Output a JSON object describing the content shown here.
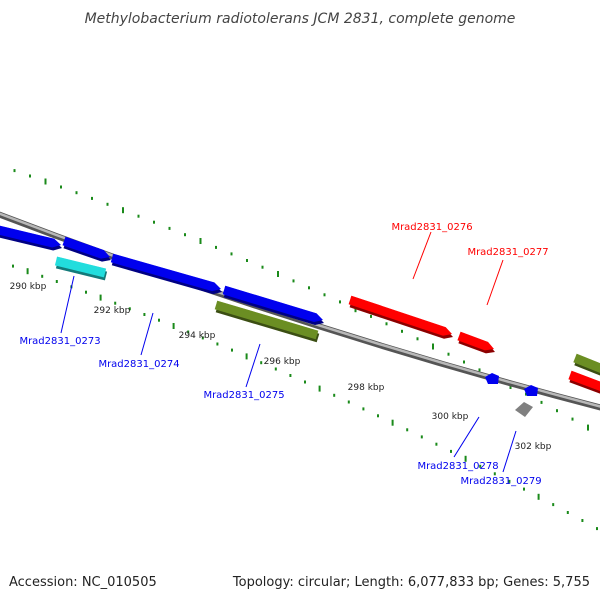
{
  "header": {
    "title": "Methylobacterium radiotolerans JCM 2831, complete genome"
  },
  "footer": {
    "accession": "Accession: NC_010505",
    "summary": "Topology: circular; Length: 6,077,833 bp; Genes: 5,755"
  },
  "colors": {
    "forward_gene": "#ff0000",
    "reverse_gene": "#0000ee",
    "rna_gene": "#22dddd",
    "other_gene": "#6b8e23",
    "pseudo_gene": "#808080",
    "tick": "#1a8a1a",
    "backbone": "#888888"
  },
  "ruler": {
    "labels": [
      "290 kbp",
      "292 kbp",
      "294 kbp",
      "296 kbp",
      "298 kbp",
      "300 kbp",
      "302 kbp"
    ]
  },
  "genes": [
    {
      "label": "Mrad2831_0273",
      "strand": "reverse",
      "color_key": "reverse_gene"
    },
    {
      "label": "Mrad2831_0274",
      "strand": "reverse",
      "color_key": "reverse_gene"
    },
    {
      "label": "Mrad2831_0275",
      "strand": "reverse",
      "color_key": "reverse_gene"
    },
    {
      "label": "Mrad2831_0276",
      "strand": "forward",
      "color_key": "forward_gene"
    },
    {
      "label": "Mrad2831_0277",
      "strand": "forward",
      "color_key": "forward_gene"
    },
    {
      "label": "Mrad2831_0278",
      "strand": "reverse",
      "color_key": "reverse_gene"
    },
    {
      "label": "Mrad2831_0279",
      "strand": "reverse",
      "color_key": "reverse_gene"
    }
  ]
}
